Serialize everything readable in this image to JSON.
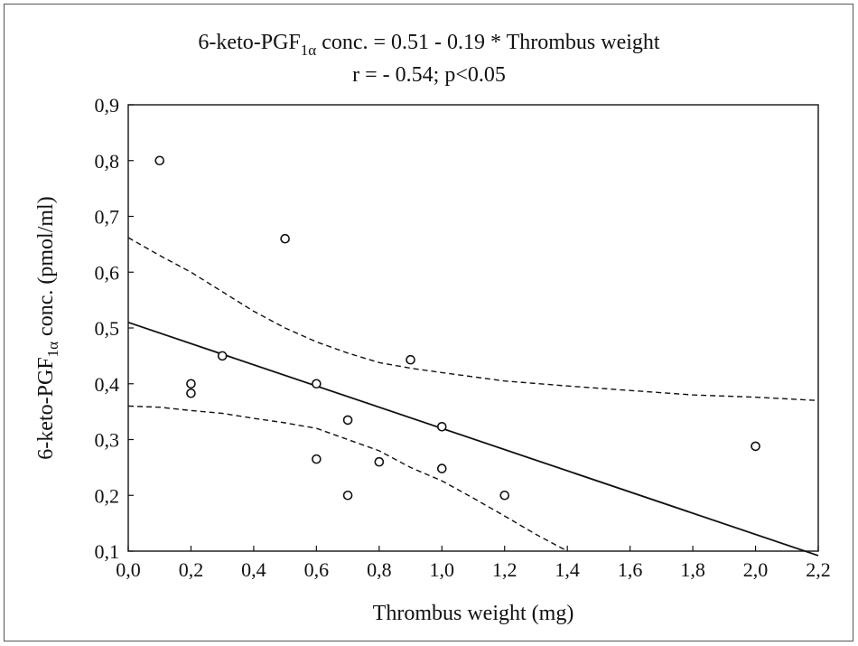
{
  "chart_data": {
    "type": "scatter",
    "title": {
      "line1_prefix": "6-keto-PGF",
      "line1_sub": "1α",
      "line1_suffix": " conc. = 0.51  - 0.19 * Thrombus weight",
      "line2": "r = - 0.54; p<0.05"
    },
    "xlabel": "Thrombus weight (mg)",
    "ylabel": {
      "prefix": "6-keto-PGF",
      "sub": "1α",
      "suffix": " conc. (pmol/ml)"
    },
    "xlim": [
      0.0,
      2.2
    ],
    "ylim": [
      0.1,
      0.9
    ],
    "x_ticks": [
      "0,0",
      "0,2",
      "0,4",
      "0,6",
      "0,8",
      "1,0",
      "1,2",
      "1,4",
      "1,6",
      "1,8",
      "2,0",
      "2,2"
    ],
    "y_ticks": [
      "0,1",
      "0,2",
      "0,3",
      "0,4",
      "0,5",
      "0,6",
      "0,7",
      "0,8",
      "0,9"
    ],
    "points": [
      {
        "x": 0.1,
        "y": 0.8
      },
      {
        "x": 0.2,
        "y": 0.4
      },
      {
        "x": 0.2,
        "y": 0.383
      },
      {
        "x": 0.3,
        "y": 0.45
      },
      {
        "x": 0.5,
        "y": 0.66
      },
      {
        "x": 0.6,
        "y": 0.4
      },
      {
        "x": 0.6,
        "y": 0.265
      },
      {
        "x": 0.7,
        "y": 0.335
      },
      {
        "x": 0.7,
        "y": 0.2
      },
      {
        "x": 0.8,
        "y": 0.26
      },
      {
        "x": 0.9,
        "y": 0.443
      },
      {
        "x": 1.0,
        "y": 0.323
      },
      {
        "x": 1.0,
        "y": 0.248
      },
      {
        "x": 1.2,
        "y": 0.2
      },
      {
        "x": 2.0,
        "y": 0.288
      }
    ],
    "regression": {
      "intercept": 0.51,
      "slope": -0.19
    },
    "confidence_band": {
      "upper": [
        [
          0.0,
          0.662
        ],
        [
          0.1,
          0.63
        ],
        [
          0.2,
          0.6
        ],
        [
          0.3,
          0.565
        ],
        [
          0.4,
          0.53
        ],
        [
          0.5,
          0.5
        ],
        [
          0.6,
          0.475
        ],
        [
          0.7,
          0.455
        ],
        [
          0.8,
          0.438
        ],
        [
          0.9,
          0.428
        ],
        [
          1.0,
          0.42
        ],
        [
          1.2,
          0.405
        ],
        [
          1.4,
          0.396
        ],
        [
          1.6,
          0.388
        ],
        [
          1.8,
          0.38
        ],
        [
          2.0,
          0.376
        ],
        [
          2.2,
          0.37
        ]
      ],
      "lower": [
        [
          0.0,
          0.36
        ],
        [
          0.1,
          0.358
        ],
        [
          0.2,
          0.352
        ],
        [
          0.3,
          0.347
        ],
        [
          0.4,
          0.338
        ],
        [
          0.5,
          0.33
        ],
        [
          0.6,
          0.32
        ],
        [
          0.7,
          0.3
        ],
        [
          0.8,
          0.28
        ],
        [
          0.9,
          0.25
        ],
        [
          1.0,
          0.226
        ],
        [
          1.1,
          0.195
        ],
        [
          1.2,
          0.163
        ],
        [
          1.3,
          0.13
        ],
        [
          1.4,
          0.1
        ]
      ]
    },
    "grid": false,
    "line_styles": {
      "fit": "solid",
      "band": "dashed"
    },
    "colors": {
      "ink": "#111111",
      "marker_fill": "#ffffff"
    }
  }
}
